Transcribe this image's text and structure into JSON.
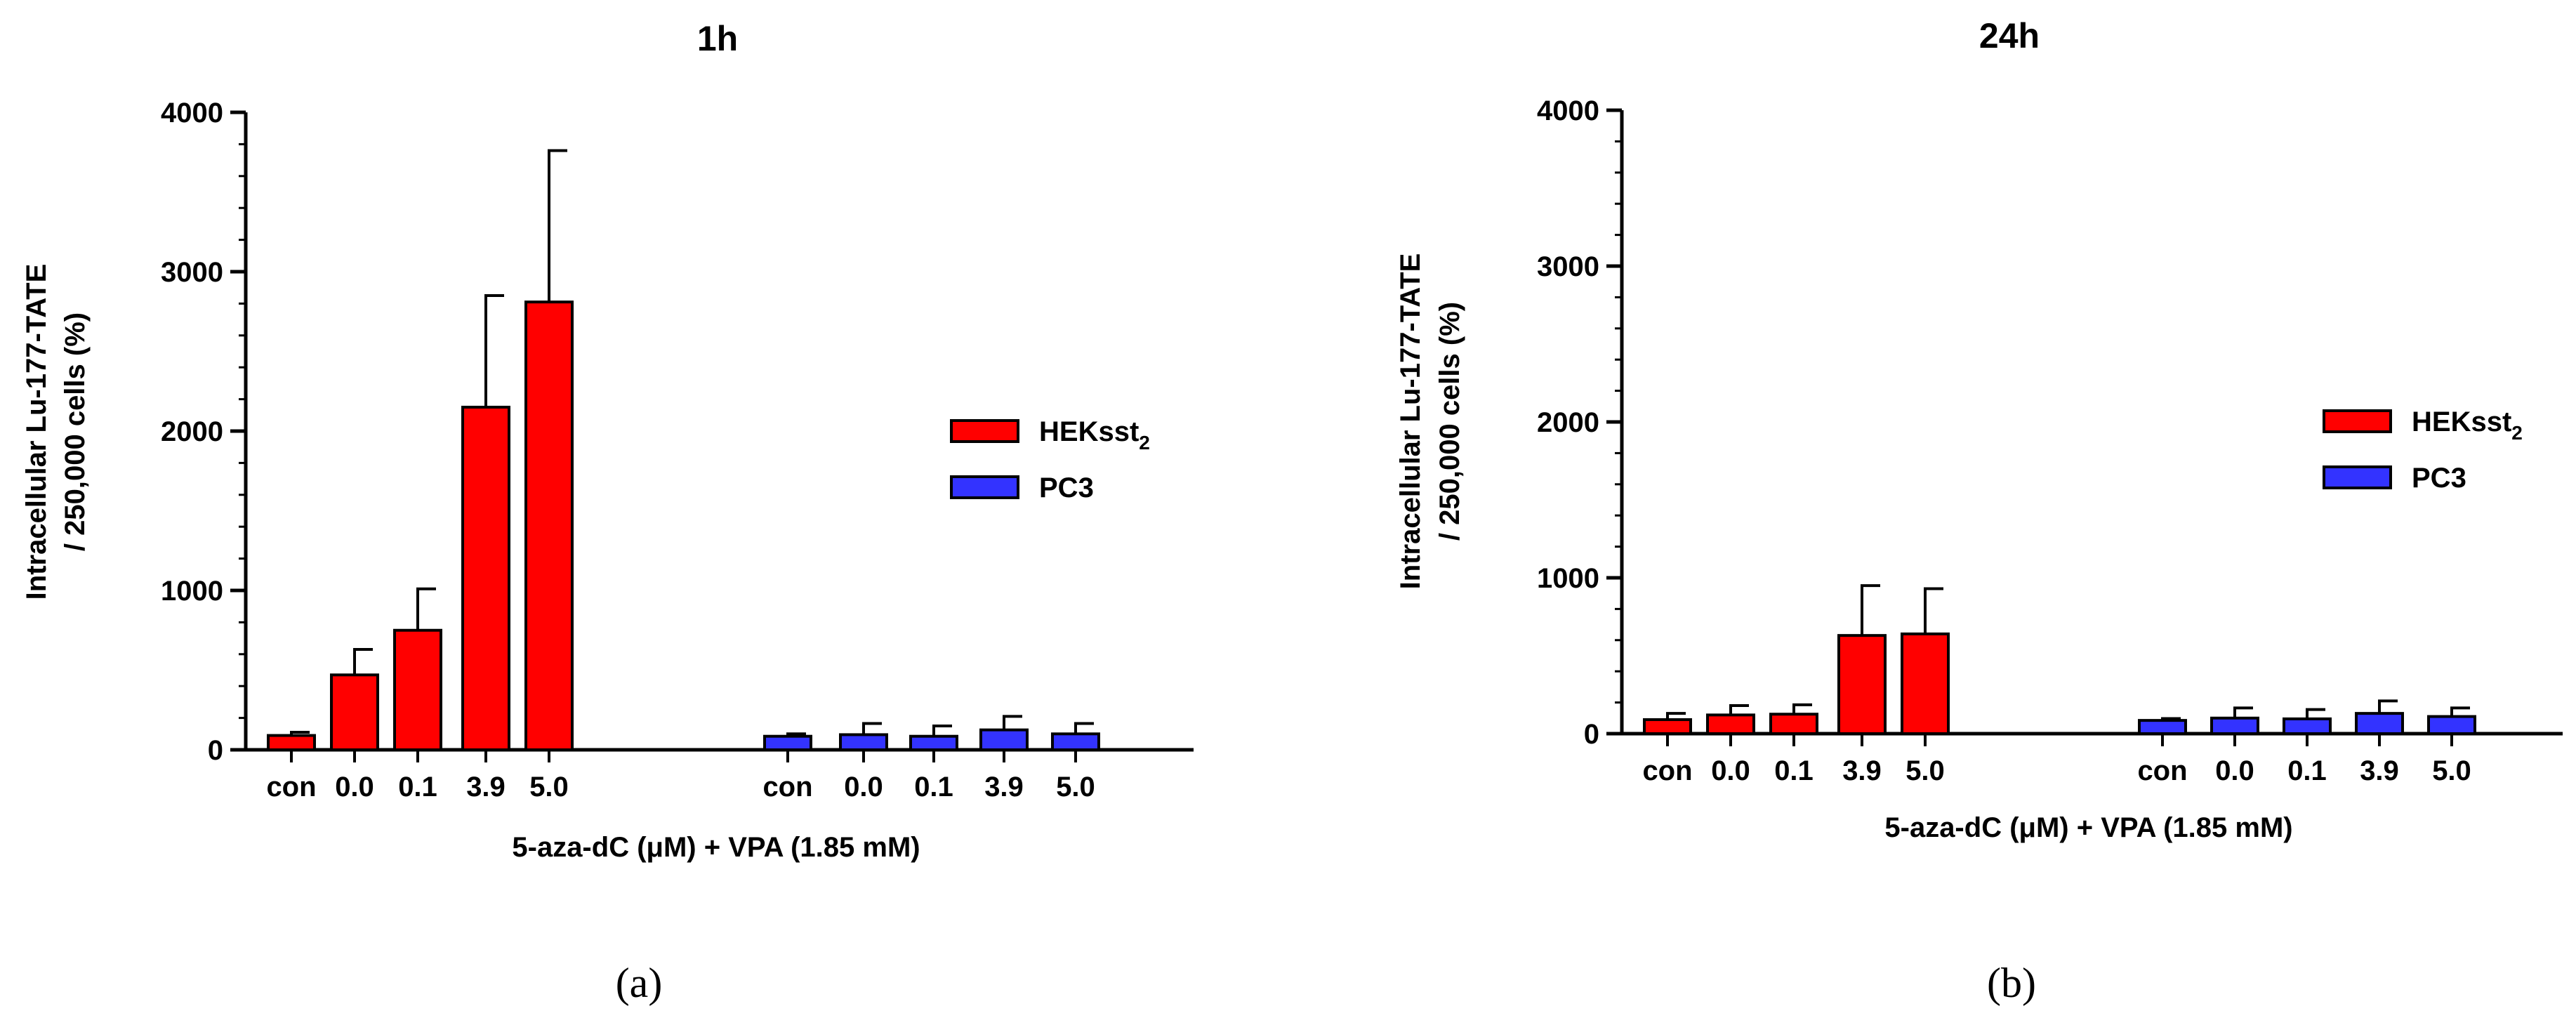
{
  "chart_data": [
    {
      "type": "bar",
      "title": "1h",
      "panel_label_text": "(a)",
      "xlabel": "5-aza-dC (μM) + VPA (1.85 mM)",
      "ylabel_lines": [
        "Intracellular Lu-177-TATE",
        "/ 250,000 cells (%)"
      ],
      "ylim": [
        0,
        4000
      ],
      "yticks": [
        "0",
        "1000",
        "2000",
        "3000",
        "4000"
      ],
      "grid": false,
      "legend_placement": "right",
      "categories": [
        "con",
        "0.0",
        "0.1",
        "3.9",
        "5.0"
      ],
      "series": [
        {
          "name": "HEKsst",
          "subscript": "2",
          "color": "#ff0000",
          "values": [
            90,
            470,
            750,
            2150,
            2810
          ],
          "error": [
            20,
            160,
            260,
            700,
            950
          ]
        },
        {
          "name": "PC3",
          "color": "#3333ff",
          "values": [
            85,
            95,
            85,
            125,
            100
          ],
          "error": [
            15,
            70,
            65,
            85,
            65
          ]
        }
      ]
    },
    {
      "type": "bar",
      "title": "24h",
      "panel_label_text": "(b)",
      "xlabel": "5-aza-dC (μM) + VPA (1.85 mM)",
      "ylabel_lines": [
        "Intracellular Lu-177-TATE",
        "/ 250,000 cells (%)"
      ],
      "ylim": [
        0,
        4000
      ],
      "yticks": [
        "0",
        "1000",
        "2000",
        "3000",
        "4000"
      ],
      "grid": false,
      "legend_placement": "right",
      "categories": [
        "con",
        "0.0",
        "0.1",
        "3.9",
        "5.0"
      ],
      "series": [
        {
          "name": "HEKsst",
          "subscript": "2",
          "color": "#ff0000",
          "values": [
            90,
            120,
            125,
            630,
            640
          ],
          "error": [
            40,
            60,
            60,
            320,
            290
          ]
        },
        {
          "name": "PC3",
          "color": "#3333ff",
          "values": [
            85,
            100,
            95,
            130,
            110
          ],
          "error": [
            12,
            65,
            60,
            80,
            55
          ]
        }
      ]
    }
  ]
}
